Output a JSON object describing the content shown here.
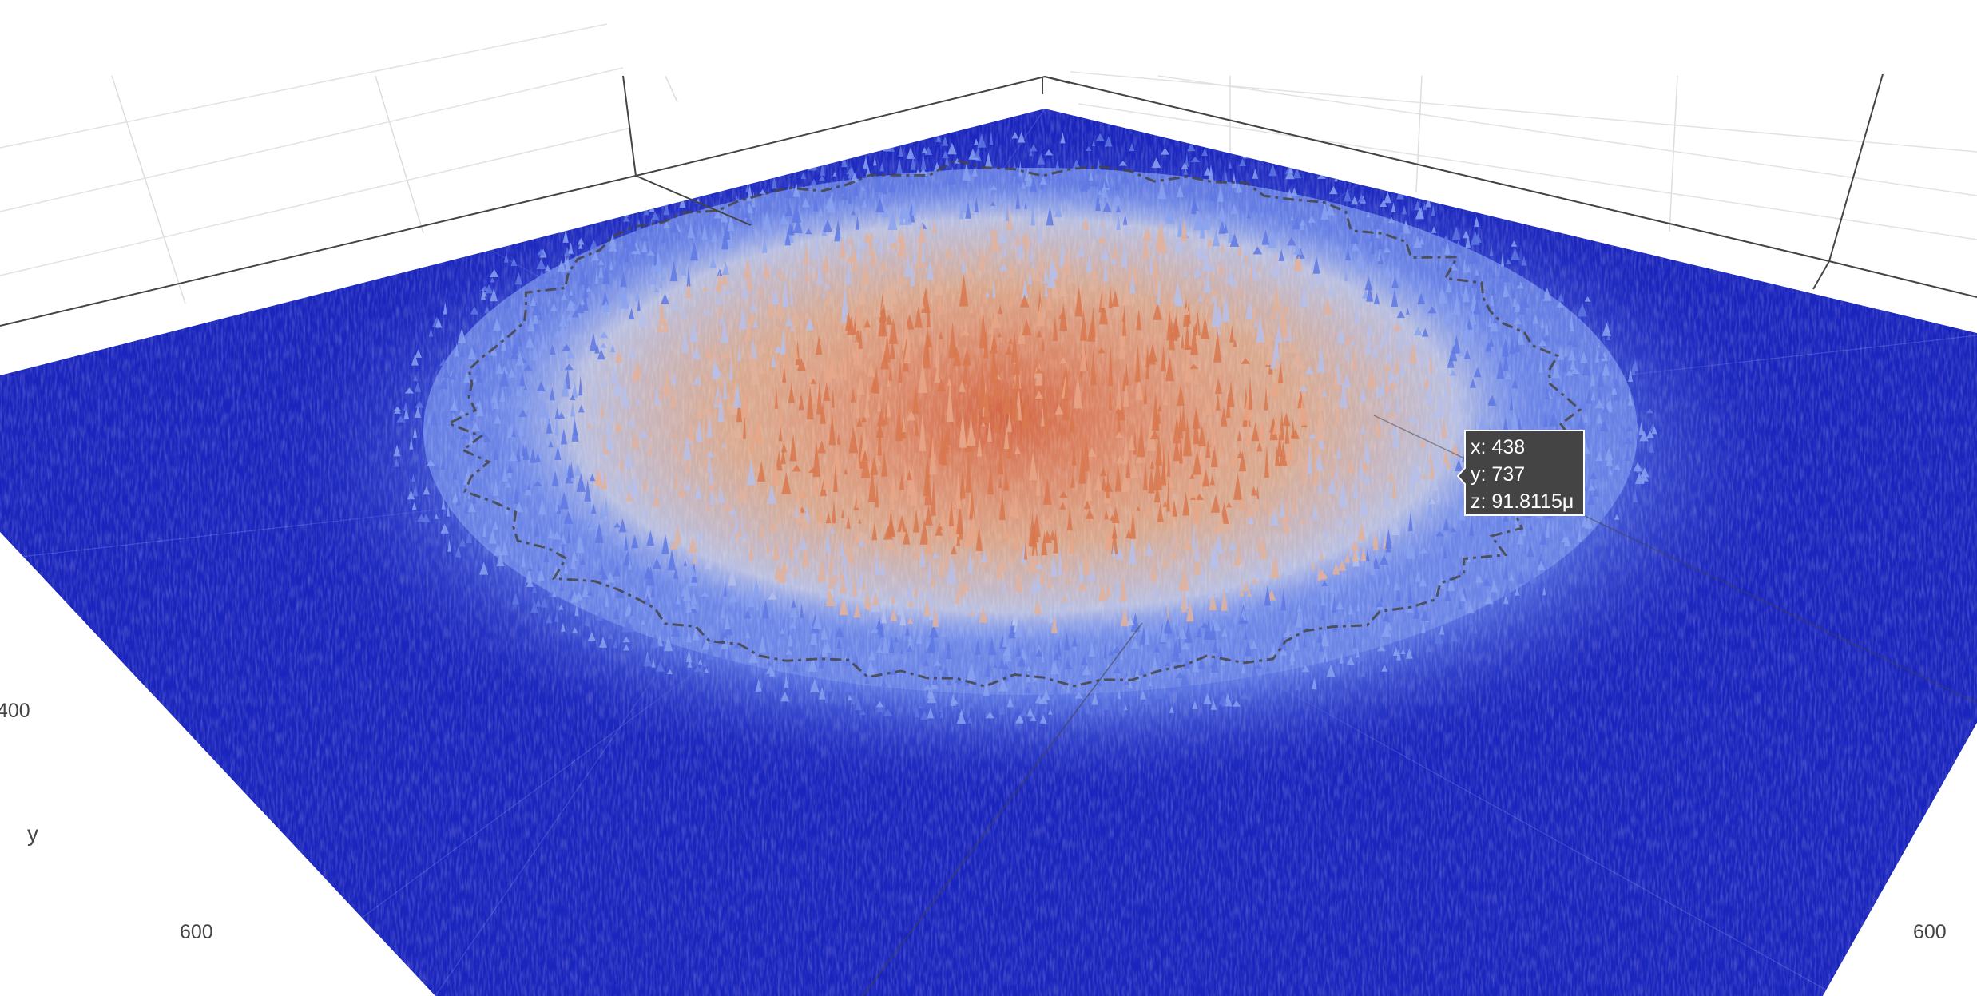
{
  "chart_data": {
    "type": "surface",
    "title": "",
    "colorscale": "coolwarm",
    "floor_color": "#1a25bd",
    "peak_color": "#c2401f",
    "contour_color": "#444444",
    "axes": {
      "x": {
        "label": "",
        "ticks": [
          "600"
        ]
      },
      "y": {
        "label": "y",
        "ticks": [
          "400",
          "600"
        ]
      },
      "z": {
        "label": "",
        "ticks": []
      }
    },
    "grid": true,
    "surface_description_levels": [
      0,
      0.25,
      0.5,
      0.75,
      1.0
    ],
    "hover": {
      "x_label": "x: 438",
      "y_label": "y: 737",
      "z_label": "z: 91.8115μ",
      "x": 438,
      "y": 737,
      "z": 9.18115e-05
    }
  }
}
